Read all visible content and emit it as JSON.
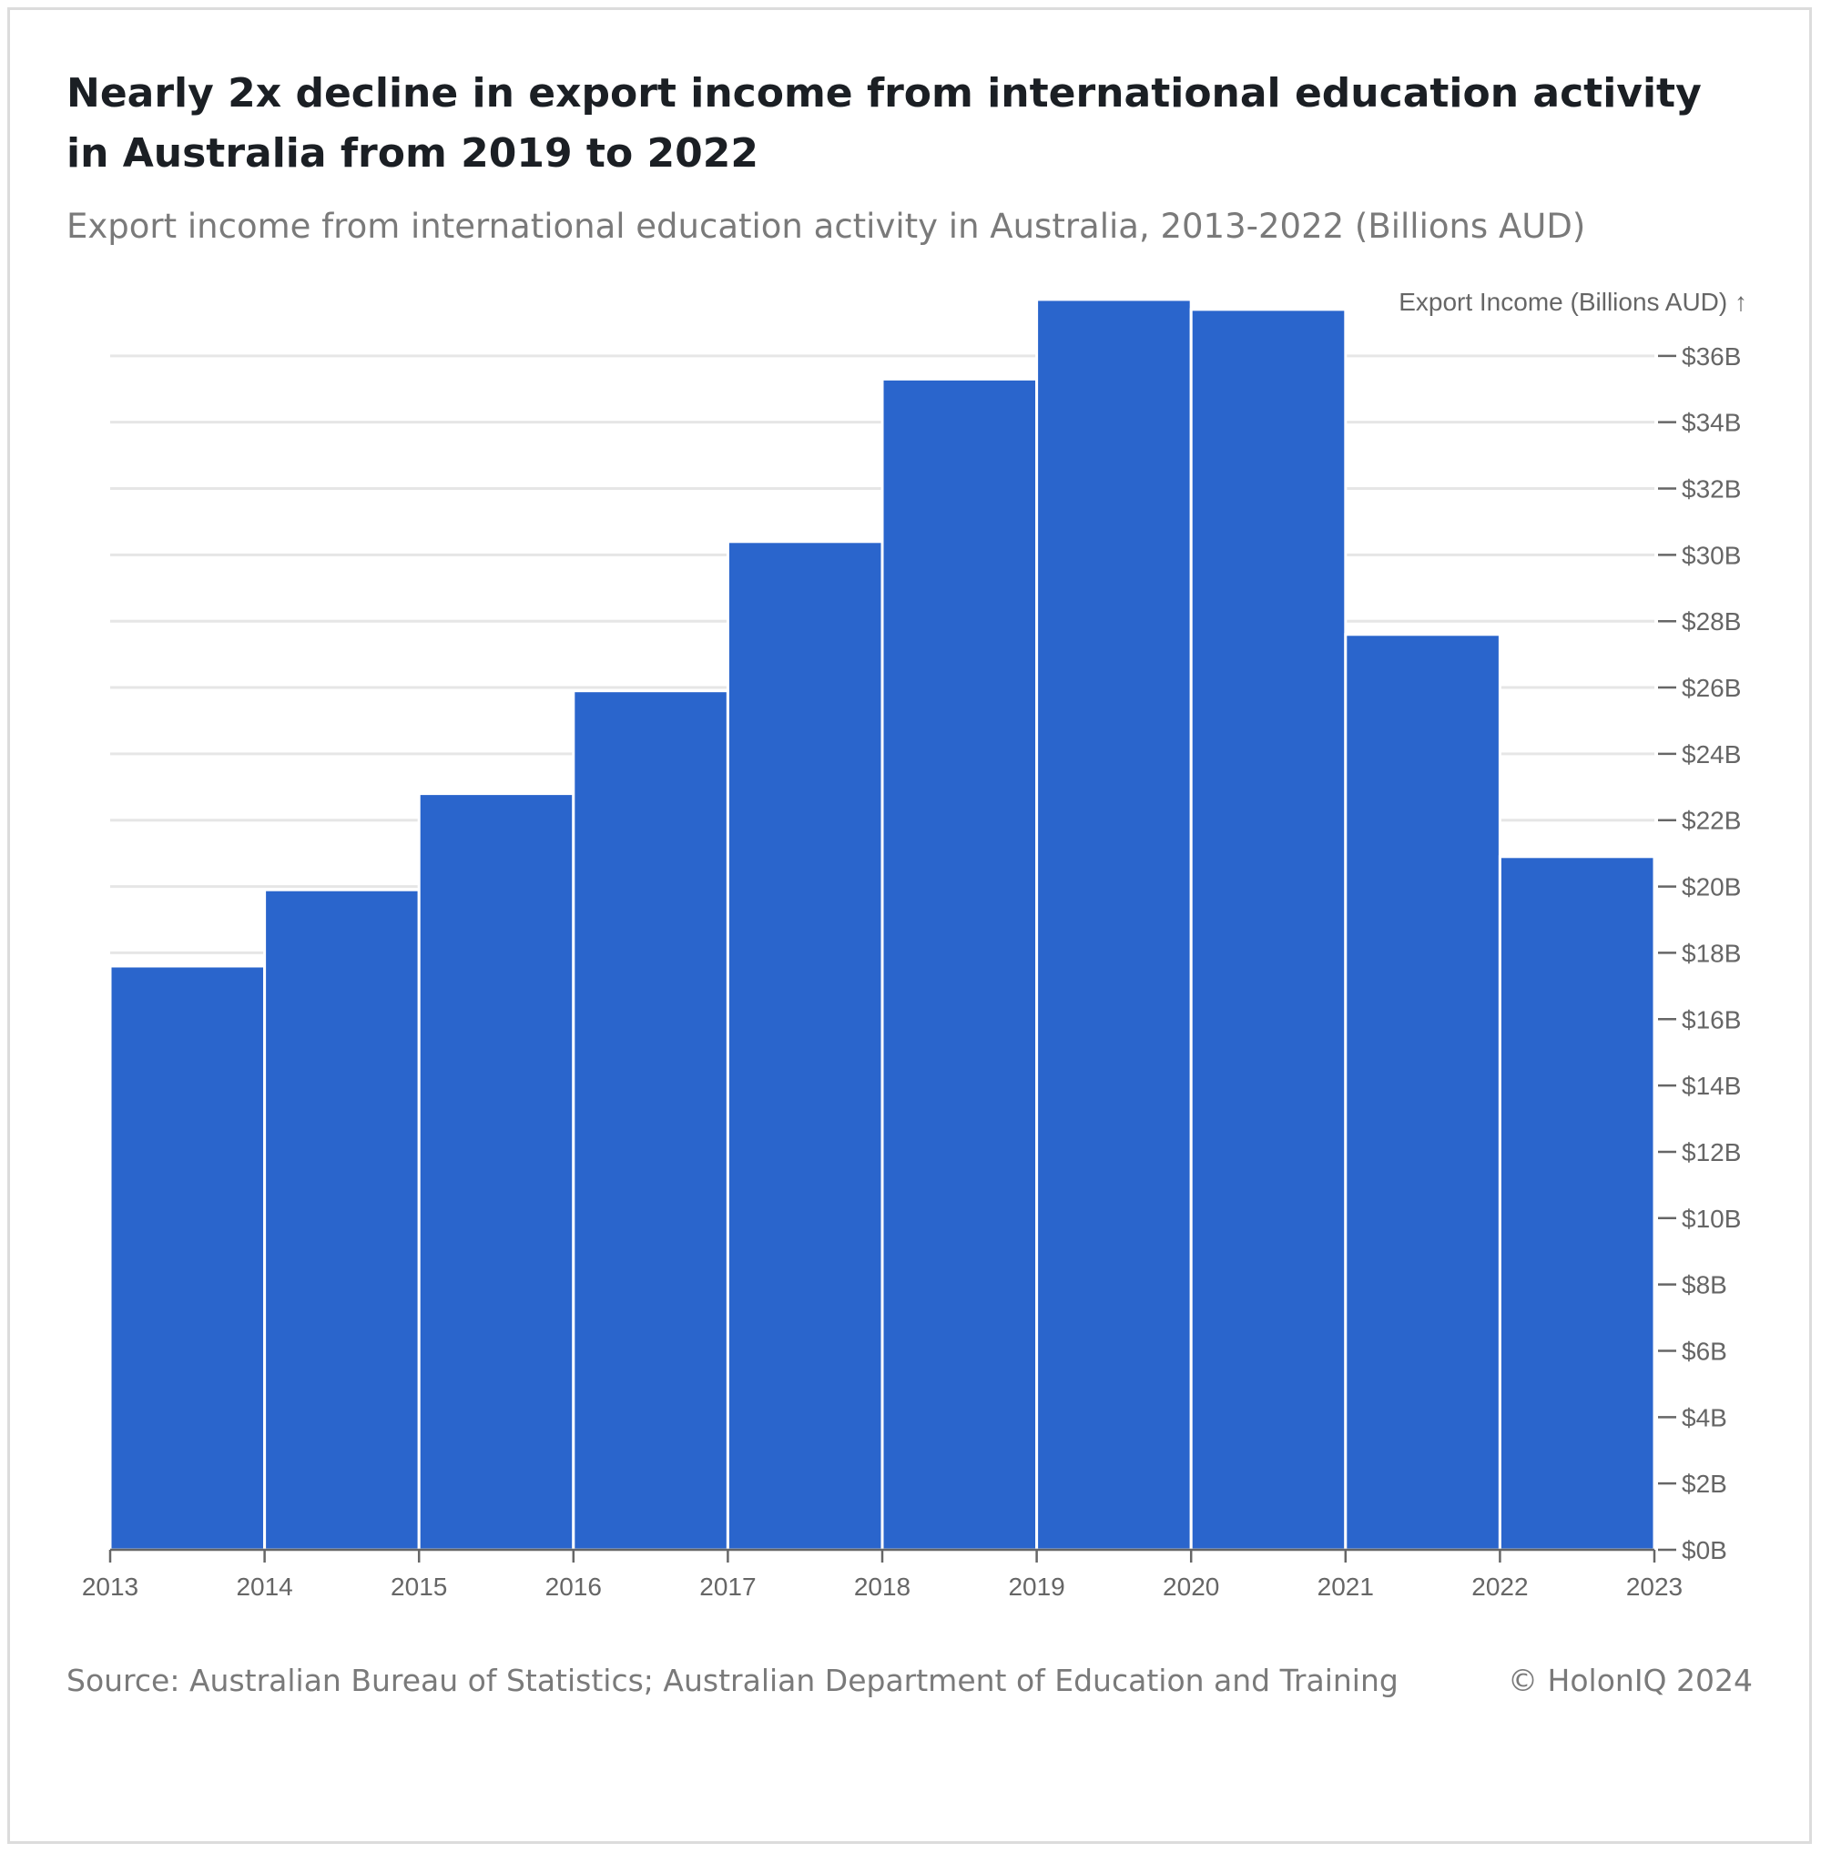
{
  "title": "Nearly 2x decline in export income from international education activity in Australia from 2019 to 2022",
  "subtitle": "Export income from international education activity in Australia, 2013-2022 (Billions AUD)",
  "source": "Source: Australian Bureau of Statistics; Australian Department of Education and Training",
  "copyright": "© HolonIQ 2024",
  "colors": {
    "bar": "#2a65cc",
    "grid": "#e6e6e6",
    "axis": "#666666",
    "bar_stroke": "#ffffff"
  },
  "chart_data": {
    "type": "bar",
    "categories": [
      "2013",
      "2014",
      "2015",
      "2016",
      "2017",
      "2018",
      "2019",
      "2020",
      "2021",
      "2022"
    ],
    "x_tick_labels": [
      "2013",
      "2014",
      "2015",
      "2016",
      "2017",
      "2018",
      "2019",
      "2020",
      "2021",
      "2022",
      "2023"
    ],
    "values": [
      17.6,
      19.9,
      22.8,
      25.9,
      30.4,
      35.3,
      37.7,
      37.4,
      27.6,
      20.9
    ],
    "ylabel": "Export Income (Billions AUD) ↑",
    "ylim": [
      0,
      38
    ],
    "y_ticks": [
      0,
      2,
      4,
      6,
      8,
      10,
      12,
      14,
      16,
      18,
      20,
      22,
      24,
      26,
      28,
      30,
      32,
      34,
      36
    ],
    "y_tick_labels": [
      "$0B",
      "$2B",
      "$4B",
      "$6B",
      "$8B",
      "$10B",
      "$12B",
      "$14B",
      "$16B",
      "$18B",
      "$20B",
      "$22B",
      "$24B",
      "$26B",
      "$28B",
      "$30B",
      "$32B",
      "$34B",
      "$36B"
    ],
    "y_axis_position": "right",
    "grid": true,
    "legend": "none"
  }
}
